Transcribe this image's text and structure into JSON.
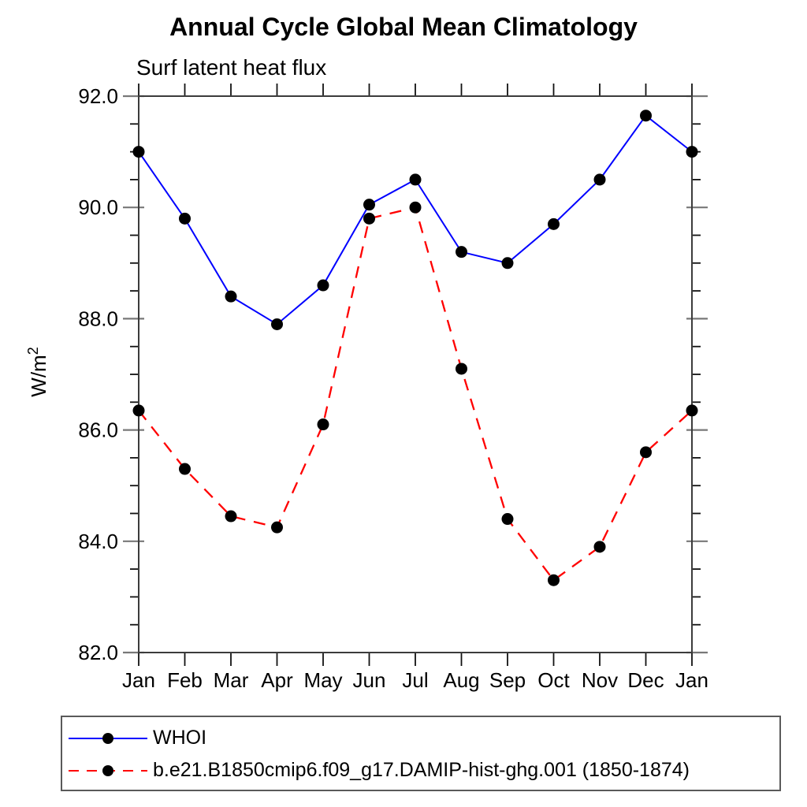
{
  "chart": {
    "title": "Annual Cycle Global Mean Climatology",
    "subtitle": "Surf latent heat flux"
  },
  "chart_data": {
    "type": "line",
    "title": "Annual Cycle Global Mean Climatology",
    "subtitle": "Surf latent heat flux",
    "xlabel": "",
    "ylabel": "W/m²",
    "ylabel_base": "W/m",
    "ylabel_sup": "2",
    "categories": [
      "Jan",
      "Feb",
      "Mar",
      "Apr",
      "May",
      "Jun",
      "Jul",
      "Aug",
      "Sep",
      "Oct",
      "Nov",
      "Dec",
      "Jan"
    ],
    "series": [
      {
        "name": "WHOI",
        "color": "#0000ff",
        "line_style": "solid",
        "marker": "filled-black-circle",
        "values": [
          91.0,
          89.8,
          88.4,
          87.9,
          88.6,
          90.05,
          90.5,
          89.2,
          89.0,
          89.7,
          90.5,
          91.65,
          91.0
        ]
      },
      {
        "name": "b.e21.B1850cmip6.f09_g17.DAMIP-hist-ghg.001 (1850-1874)",
        "color": "#ff0000",
        "line_style": "dashed",
        "marker": "filled-black-circle",
        "values": [
          86.35,
          85.3,
          84.45,
          84.25,
          86.1,
          89.8,
          90.0,
          87.1,
          84.4,
          83.3,
          83.9,
          85.6,
          86.35
        ]
      }
    ],
    "ylim": [
      82,
      92
    ],
    "y_major_ticks": [
      82,
      84,
      86,
      88,
      90,
      92
    ],
    "y_tick_labels": [
      "82.0",
      "84.0",
      "86.0",
      "88.0",
      "90.0",
      "92.0"
    ],
    "y_minor_step": 0.5,
    "grid": false,
    "legend_position": "bottom-left-box",
    "marker_color": "#000000",
    "frame_color": "#3c3c3c",
    "major_tick_color": "#787878",
    "minor_tick_color": "#111111"
  }
}
